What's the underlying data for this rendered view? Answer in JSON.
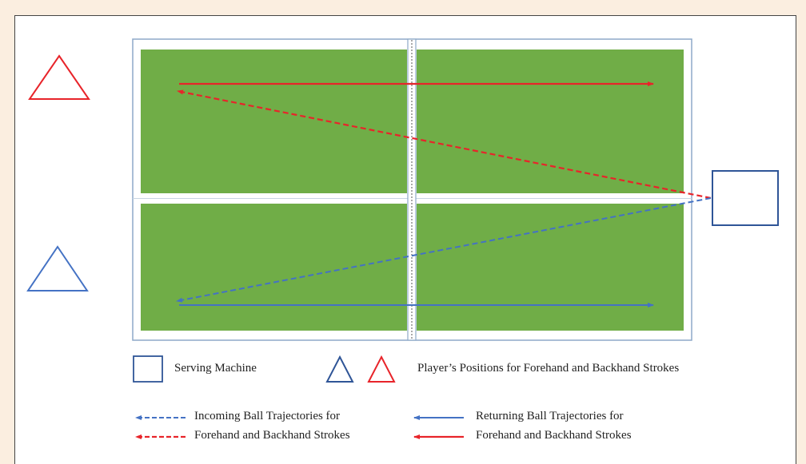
{
  "legend": {
    "serving_machine": "Serving Machine",
    "player_positions": "Player’s Positions for Forehand and Backhand Strokes",
    "incoming_line1": "Incoming Ball Trajectories for",
    "incoming_line2": "Forehand and Backhand Strokes",
    "returning_line1": "Returning Ball Trajectories for",
    "returning_line2": "Forehand and Backhand Strokes"
  },
  "colors": {
    "table_green": "#70ad47",
    "red": "#e8242a",
    "blue": "#4472c4",
    "dark_blue": "#2f5597",
    "background": "#fbeee0"
  }
}
